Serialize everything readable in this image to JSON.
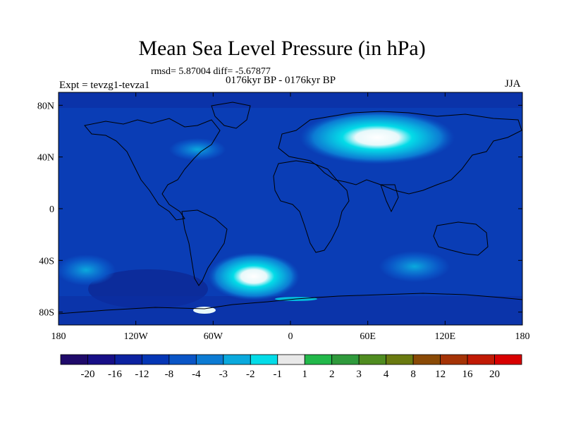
{
  "title": "Mean Sea Level Pressure (in hPa)",
  "stats": "rmsd= 5.87004 diff= -5.67877",
  "period": "0176kyr BP - 0176kyr BP",
  "experiment": "Expt = tevzg1-tevza1",
  "season": "JJA",
  "map": {
    "lon_range": [
      -180,
      180
    ],
    "lat_range": [
      -90,
      90
    ],
    "x_ticks": [
      {
        "value": -180,
        "label": "180"
      },
      {
        "value": -120,
        "label": "120W"
      },
      {
        "value": -60,
        "label": "60W"
      },
      {
        "value": 0,
        "label": "0"
      },
      {
        "value": 60,
        "label": "60E"
      },
      {
        "value": 120,
        "label": "120E"
      },
      {
        "value": 180,
        "label": "180"
      }
    ],
    "y_ticks": [
      {
        "value": 80,
        "label": "80N"
      },
      {
        "value": 40,
        "label": "40N"
      },
      {
        "value": 0,
        "label": "0"
      },
      {
        "value": -40,
        "label": "40S"
      },
      {
        "value": -80,
        "label": "80S"
      }
    ],
    "background_color": "#0a3db5"
  },
  "colorbar": {
    "colors": [
      "#1f0a6a",
      "#170f87",
      "#0c22a0",
      "#0536b5",
      "#0a55c6",
      "#0c7bd3",
      "#0aa9dd",
      "#03dce8",
      "#e8e8e8",
      "#22b84a",
      "#2f9a3c",
      "#4f8c20",
      "#6a7a10",
      "#8a4a06",
      "#a53306",
      "#c11a04",
      "#d80000"
    ],
    "labels": [
      "-20",
      "-16",
      "-12",
      "-8",
      "-4",
      "-3",
      "-2",
      "-1",
      "1",
      "2",
      "3",
      "4",
      "8",
      "12",
      "16",
      "20"
    ]
  }
}
